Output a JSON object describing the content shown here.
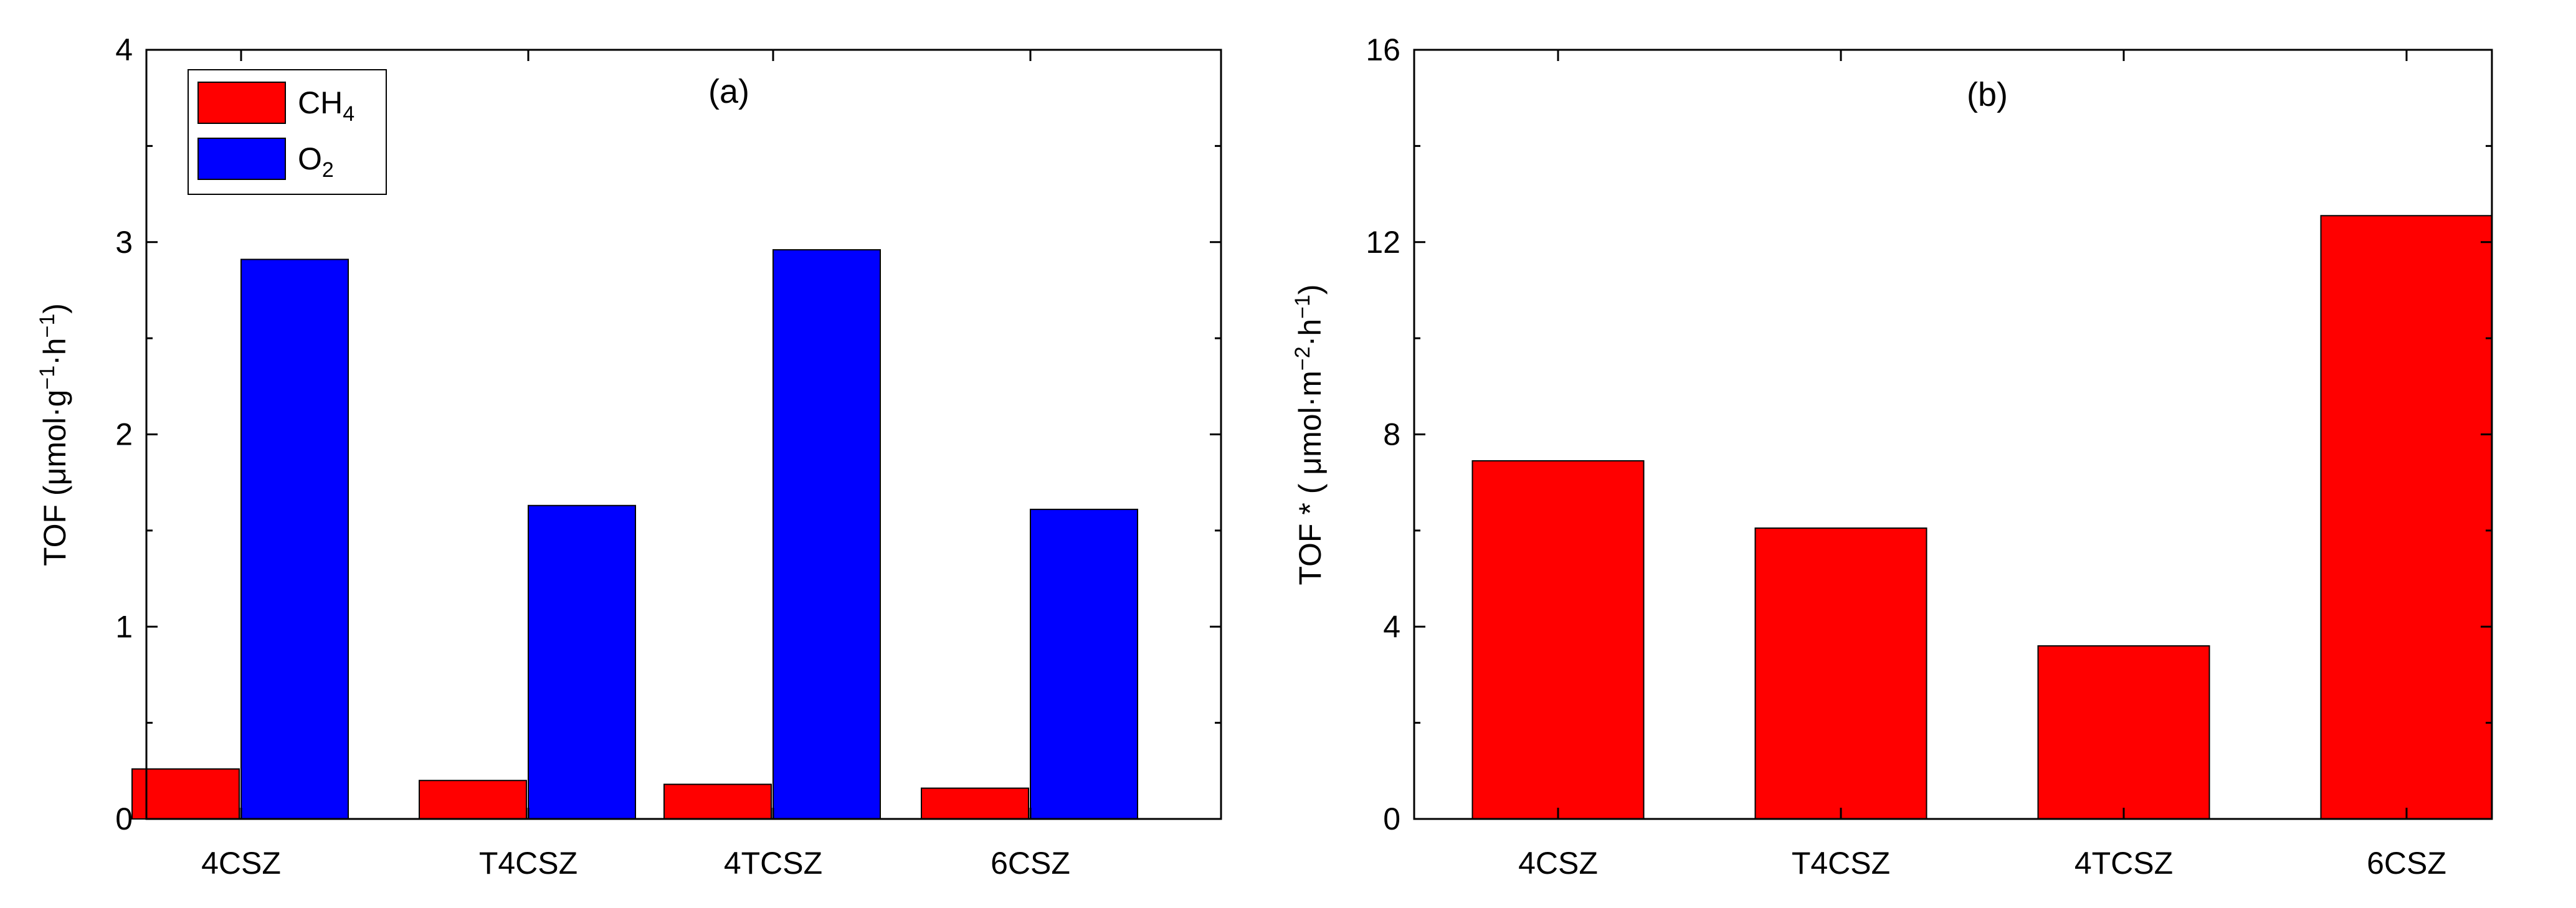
{
  "chart_data": [
    {
      "type": "bar",
      "panel_label": "(a)",
      "categories": [
        "4CSZ",
        "T4CSZ",
        "4TCSZ",
        "6CSZ"
      ],
      "series": [
        {
          "name": "CH4",
          "legend": {
            "base": "CH",
            "sub": "4"
          },
          "color": "#ff0000",
          "values": [
            0.26,
            0.2,
            0.18,
            0.16
          ]
        },
        {
          "name": "O2",
          "legend": {
            "base": "O",
            "sub": "2"
          },
          "color": "#0000ff",
          "values": [
            2.91,
            1.63,
            2.96,
            1.61
          ]
        }
      ],
      "ylim": [
        0,
        4
      ],
      "yticks": [
        0,
        1,
        2,
        3,
        4
      ],
      "ylabel": {
        "pre": "TOF (μmol·g",
        "sup1": "−1",
        "mid": "·h",
        "sup2": "−1",
        "post": ")"
      },
      "xlabel": "",
      "legend_position": "top-left"
    },
    {
      "type": "bar",
      "panel_label": "(b)",
      "categories": [
        "4CSZ",
        "T4CSZ",
        "4TCSZ",
        "6CSZ"
      ],
      "series": [
        {
          "name": "TOF*",
          "color": "#ff0000",
          "values": [
            7.45,
            6.05,
            3.6,
            12.55
          ]
        }
      ],
      "ylim": [
        0,
        16
      ],
      "yticks": [
        0,
        4,
        8,
        12,
        16
      ],
      "ylabel": {
        "pre": "TOF * ( μmol·m",
        "sup1": "−2",
        "mid": "·h",
        "sup2": "−1",
        "post": ")"
      },
      "xlabel": ""
    }
  ]
}
